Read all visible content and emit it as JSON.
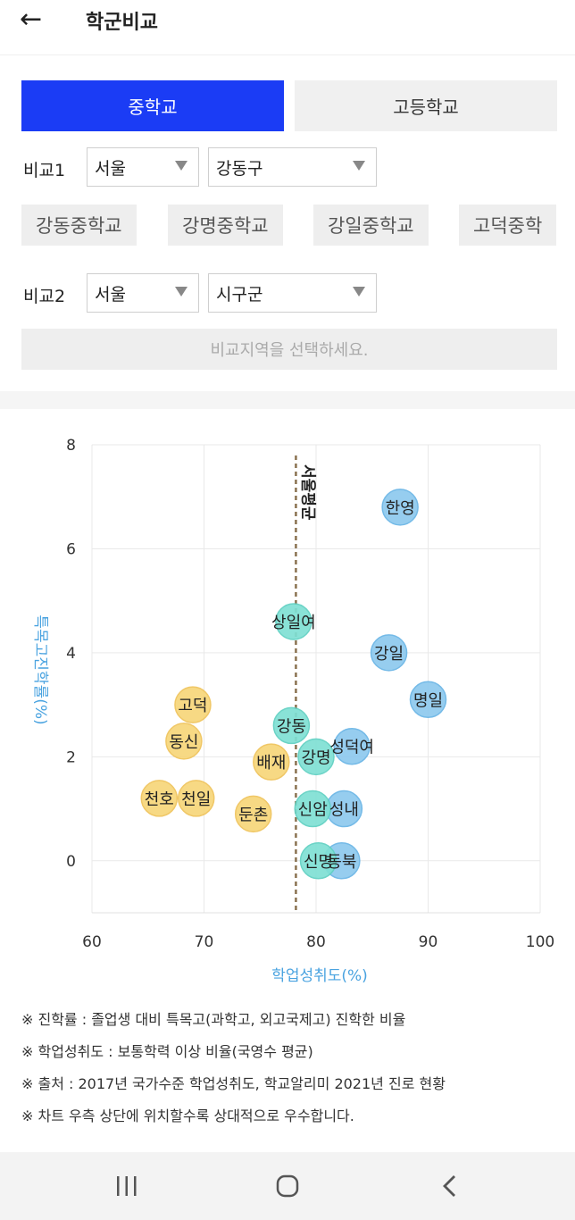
{
  "header": {
    "back_icon": "←",
    "title": "학군비교"
  },
  "tabs": [
    {
      "label": "중학교",
      "active": true
    },
    {
      "label": "고등학교",
      "active": false
    }
  ],
  "compare1": {
    "label": "비교1",
    "region": "서울",
    "district": "강동구"
  },
  "schools": [
    "강동중학교",
    "강명중학교",
    "강일중학교",
    "고덕중학"
  ],
  "compare2": {
    "label": "비교2",
    "region": "서울",
    "district": "시구군",
    "placeholder": "비교지역을 선택하세요."
  },
  "colors": {
    "accent": "#1b3cf5",
    "blue_bubble": "#8ec9ee",
    "teal_bubble": "#7fe0d4",
    "yellow_bubble": "#f7d67a",
    "axis_label": "#4aa3e0"
  },
  "chart_data": {
    "type": "scatter",
    "xlabel": "학업성취도(%)",
    "ylabel": "특목고진학률(%)",
    "xlim": [
      60,
      100
    ],
    "ylim": [
      -1,
      8
    ],
    "xticks": [
      60,
      70,
      80,
      90,
      100
    ],
    "yticks": [
      0,
      2,
      4,
      6,
      8
    ],
    "grid": true,
    "reference_line": {
      "x": 78.2,
      "label": "서울평균"
    },
    "points": [
      {
        "name": "한영",
        "x": 87.5,
        "y": 6.8,
        "group": "blue"
      },
      {
        "name": "강일",
        "x": 86.5,
        "y": 4.0,
        "group": "blue"
      },
      {
        "name": "명일",
        "x": 90.0,
        "y": 3.1,
        "group": "blue"
      },
      {
        "name": "성덕여",
        "x": 83.2,
        "y": 2.2,
        "group": "blue"
      },
      {
        "name": "성내",
        "x": 82.5,
        "y": 1.0,
        "group": "blue"
      },
      {
        "name": "동북",
        "x": 82.3,
        "y": 0.0,
        "group": "blue"
      },
      {
        "name": "상일여",
        "x": 78.0,
        "y": 4.6,
        "group": "teal"
      },
      {
        "name": "강동",
        "x": 77.8,
        "y": 2.6,
        "group": "teal"
      },
      {
        "name": "강명",
        "x": 80.0,
        "y": 2.0,
        "group": "teal"
      },
      {
        "name": "신암",
        "x": 79.7,
        "y": 1.0,
        "group": "teal"
      },
      {
        "name": "신명",
        "x": 80.2,
        "y": 0.0,
        "group": "teal"
      },
      {
        "name": "고덕",
        "x": 69.0,
        "y": 3.0,
        "group": "yellow"
      },
      {
        "name": "동신",
        "x": 68.2,
        "y": 2.3,
        "group": "yellow"
      },
      {
        "name": "배재",
        "x": 76.0,
        "y": 1.9,
        "group": "yellow"
      },
      {
        "name": "천호",
        "x": 66.0,
        "y": 1.2,
        "group": "yellow"
      },
      {
        "name": "천일",
        "x": 69.3,
        "y": 1.2,
        "group": "yellow"
      },
      {
        "name": "둔촌",
        "x": 74.4,
        "y": 0.9,
        "group": "yellow"
      }
    ]
  },
  "notes": [
    "※ 진학률 : 졸업생 대비 특목고(과학고, 외고국제고) 진학한 비율",
    "※ 학업성취도 : 보통학력 이상 비율(국영수 평균)",
    "※ 출처 : 2017년 국가수준 학업성취도, 학교알리미 2021년 진로 현황",
    "※ 차트 우측 상단에 위치할수록 상대적으로 우수합니다."
  ],
  "navbar": {
    "recents_icon": "recents-icon",
    "home_icon": "home-icon",
    "back_icon": "back-icon"
  }
}
